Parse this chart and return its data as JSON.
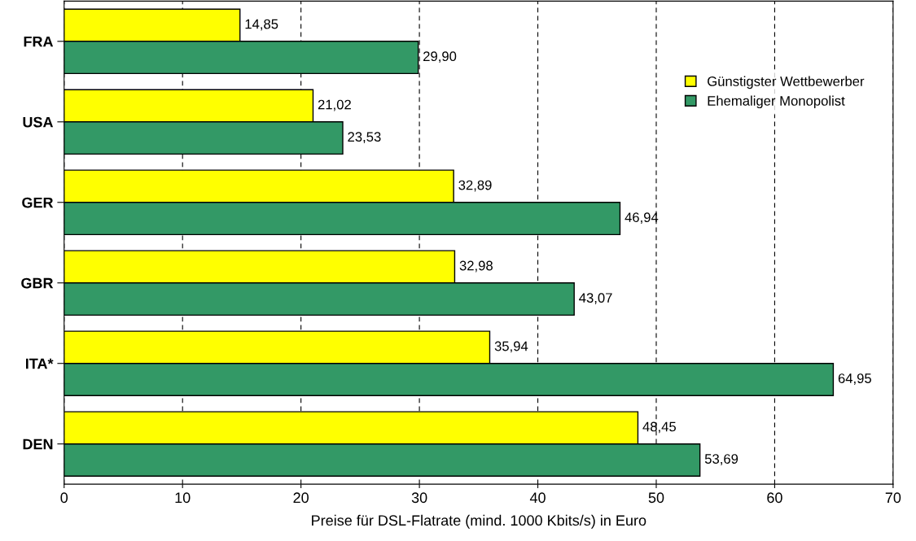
{
  "chart_data": {
    "type": "bar",
    "orientation": "horizontal",
    "xlabel": "Preise für DSL-Flatrate (mind. 1000 Kbits/s) in Euro",
    "categories": [
      "FRA",
      "USA",
      "GER",
      "GBR",
      "ITA*",
      "DEN"
    ],
    "series": [
      {
        "name": "Günstigster Wettbewerber",
        "color": "#ffff00",
        "values": [
          14.85,
          21.02,
          32.89,
          32.98,
          35.94,
          48.45
        ],
        "value_labels": [
          "14,85",
          "21,02",
          "32,89",
          "32,98",
          "35,94",
          "48,45"
        ]
      },
      {
        "name": "Ehemaliger Monopolist",
        "color": "#339966",
        "values": [
          29.9,
          23.53,
          46.94,
          43.07,
          64.95,
          53.69
        ],
        "value_labels": [
          "29,90",
          "23,53",
          "46,94",
          "43,07",
          "64,95",
          "53,69"
        ]
      }
    ],
    "xlim": [
      0,
      70
    ],
    "xticks": [
      0,
      10,
      20,
      30,
      40,
      50,
      60,
      70
    ],
    "grid": "x",
    "legend": "top right"
  }
}
